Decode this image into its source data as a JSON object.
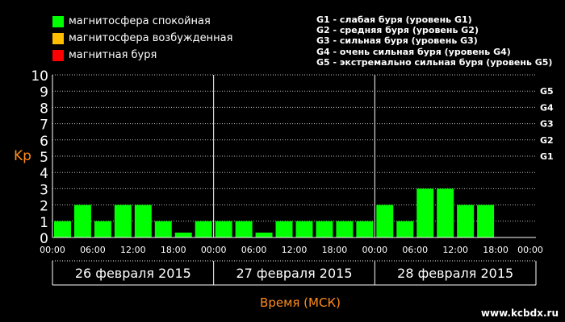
{
  "chart_data": {
    "type": "bar",
    "ylabel": "Kp",
    "xlabel": "Время (МСК)",
    "ylim": [
      0,
      10
    ],
    "yticks": [
      "0",
      "1",
      "2",
      "3",
      "4",
      "5",
      "6",
      "7",
      "8",
      "9",
      "10"
    ],
    "g_levels": [
      {
        "label": "G1",
        "kp": 5
      },
      {
        "label": "G2",
        "kp": 6
      },
      {
        "label": "G3",
        "kp": 7
      },
      {
        "label": "G4",
        "kp": 8
      },
      {
        "label": "G5",
        "kp": 9
      }
    ],
    "grid": true,
    "days": [
      {
        "date": "26 февраля 2015",
        "values": [
          1,
          2,
          1,
          2,
          2,
          1,
          0.3,
          1
        ]
      },
      {
        "date": "27 февраля 2015",
        "values": [
          1,
          1,
          0.3,
          1,
          1,
          1,
          1,
          1
        ]
      },
      {
        "date": "28 февраля 2015",
        "values": [
          2,
          1,
          3,
          3,
          2,
          2,
          0,
          0
        ]
      }
    ],
    "time_ticks": [
      "00:00",
      "06:00",
      "12:00",
      "18:00"
    ],
    "end_tick": "00:00",
    "legend": [
      {
        "label": "магнитосфера спокойная",
        "color": "#00ff00"
      },
      {
        "label": "магнитосфера возбужденная",
        "color": "#ffbf00"
      },
      {
        "label": "магнитная буря",
        "color": "#ff0000"
      }
    ],
    "storm_legend": [
      "G1 - слабая буря (уровень G1)",
      "G2 - средняя буря (уровень G2)",
      "G3 - сильная буря (уровень G3)",
      "G4 - очень сильная буря (уровень G4)",
      "G5 - экстремально сильная буря (уровень G5)"
    ]
  },
  "colors": {
    "bar": "#00ff00",
    "axis_label": "#ff8c1a",
    "grid": "#bbbbbb"
  },
  "footer": {
    "credit": "www.kcbdx.ru"
  }
}
